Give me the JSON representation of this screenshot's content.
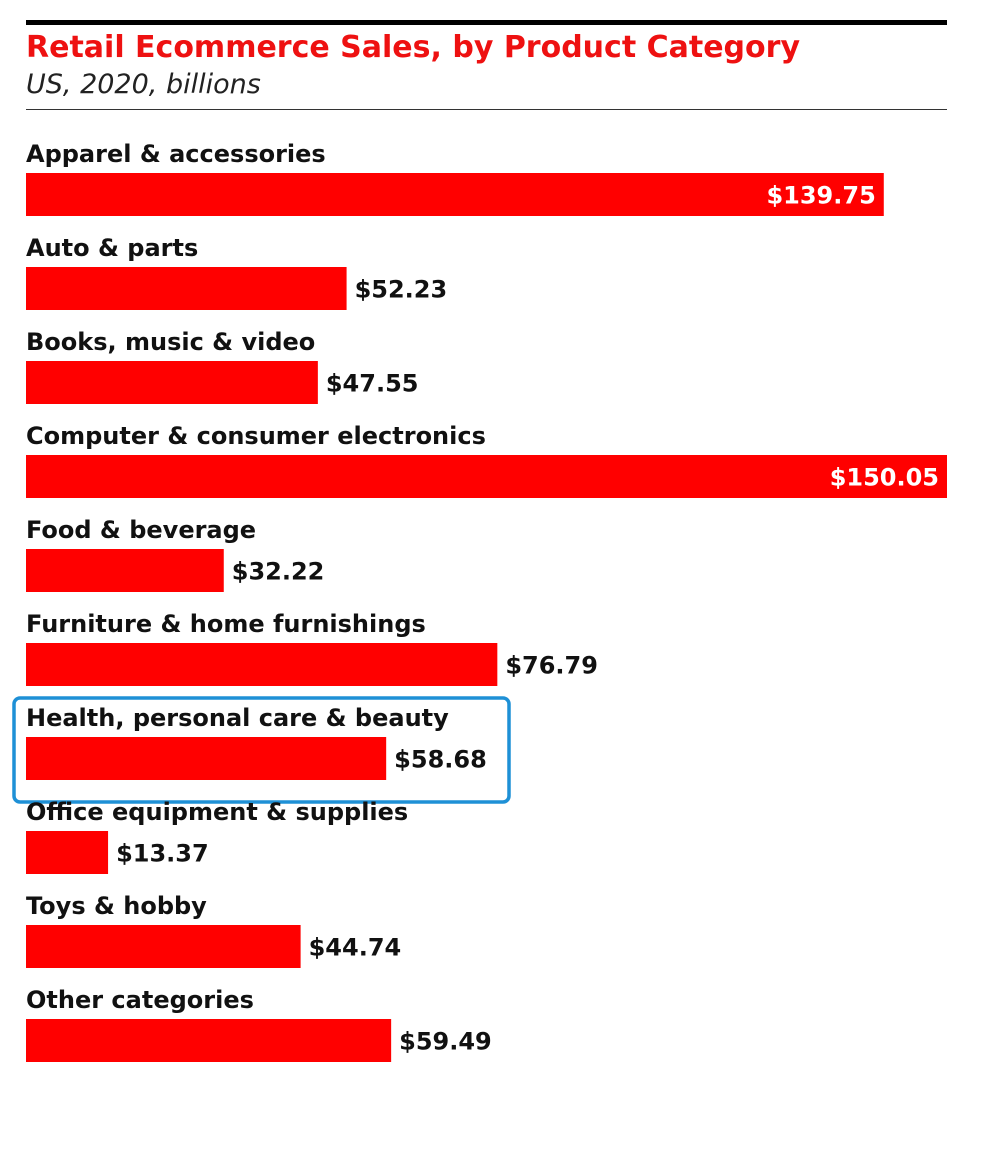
{
  "chart_data": {
    "type": "bar",
    "orientation": "horizontal",
    "title": "Retail Ecommerce Sales, by Product Category",
    "subtitle": "US, 2020, billions",
    "categories": [
      "Apparel & accessories",
      "Auto & parts",
      "Books, music & video",
      "Computer & consumer electronics",
      "Food & beverage",
      "Furniture & home furnishings",
      "Health, personal care & beauty",
      "Office equipment & supplies",
      "Toys & hobby",
      "Other categories"
    ],
    "values": [
      139.75,
      52.23,
      47.55,
      150.05,
      32.22,
      76.79,
      58.68,
      13.37,
      44.74,
      59.49
    ],
    "value_labels": [
      "$139.75",
      "$52.23",
      "$47.55",
      "$150.05",
      "$32.22",
      "$76.79",
      "$58.68",
      "$13.37",
      "$44.74",
      "$59.49"
    ],
    "xlim": [
      0,
      150.05
    ],
    "grid": false,
    "highlighted_category": "Health, personal care & beauty",
    "bar_color": "#ff0000",
    "highlight_color": "#1e90d6",
    "title_color": "#ee1111"
  }
}
